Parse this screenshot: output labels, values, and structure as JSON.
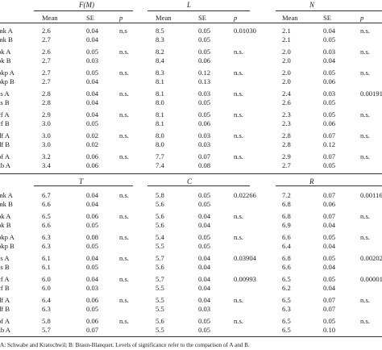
{
  "sections": [
    {
      "titles": [
        "F(M)",
        "L",
        "N"
      ],
      "header_row": true,
      "labels": [
        "Mean",
        "SE",
        "p"
      ],
      "groups": [
        {
          "rows": [
            {
              "label": "mk A",
              "v": [
                [
                  "2.6",
                  "0.04",
                  "n.s"
                ],
                [
                  "8.5",
                  "0.05",
                  "0.01030"
                ],
                [
                  "2.1",
                  "0.04",
                  "n.s."
                ]
              ]
            },
            {
              "label": "mk B",
              "v": [
                [
                  "2.7",
                  "0.04",
                  ""
                ],
                [
                  "8.3",
                  "0.05",
                  ""
                ],
                [
                  "2.1",
                  "0.05",
                  ""
                ]
              ]
            }
          ]
        },
        {
          "rows": [
            {
              "label": "ok A",
              "v": [
                [
                  "2.6",
                  "0.05",
                  "n.s."
                ],
                [
                  "8.2",
                  "0.05",
                  "n.s."
                ],
                [
                  "2.0",
                  "0.03",
                  "n.s."
                ]
              ]
            },
            {
              "label": "ok B",
              "v": [
                [
                  "2.7",
                  "0.03",
                  ""
                ],
                [
                  "8.4",
                  "0.06",
                  ""
                ],
                [
                  "2.0",
                  "0.04",
                  ""
                ]
              ]
            }
          ]
        },
        {
          "rows": [
            {
              "label": "okp A",
              "v": [
                [
                  "2.7",
                  "0.05",
                  "n.s."
                ],
                [
                  "8.3",
                  "0.12",
                  "n.s."
                ],
                [
                  "2.0",
                  "0.05",
                  "n.s."
                ]
              ]
            },
            {
              "label": "okp B",
              "v": [
                [
                  "2.7",
                  "0.04",
                  ""
                ],
                [
                  "8.1",
                  "0.13",
                  ""
                ],
                [
                  "2.0",
                  "0.06",
                  ""
                ]
              ]
            }
          ]
        },
        {
          "rows": [
            {
              "label": "ss A",
              "v": [
                [
                  "2.8",
                  "0.04",
                  "n.s."
                ],
                [
                  "8.1",
                  "0.03",
                  "n.s."
                ],
                [
                  "2.4",
                  "0.03",
                  "0.00191"
                ]
              ]
            },
            {
              "label": "ss B",
              "v": [
                [
                  "2.8",
                  "0.04",
                  ""
                ],
                [
                  "8.0",
                  "0.05",
                  ""
                ],
                [
                  "2.6",
                  "0.05",
                  ""
                ]
              ]
            }
          ]
        },
        {
          "rows": [
            {
              "label": "cf A",
              "v": [
                [
                  "2.9",
                  "0.04",
                  "n.s."
                ],
                [
                  "8.1",
                  "0.05",
                  "n.s."
                ],
                [
                  "2.3",
                  "0.05",
                  "n.s."
                ]
              ]
            },
            {
              "label": "cf B",
              "v": [
                [
                  "3.0",
                  "0.05",
                  ""
                ],
                [
                  "8.1",
                  "0.06",
                  ""
                ],
                [
                  "2.3",
                  "0.06",
                  ""
                ]
              ]
            }
          ]
        },
        {
          "rows": [
            {
              "label": "df A",
              "v": [
                [
                  "3.0",
                  "0.02",
                  "n.s."
                ],
                [
                  "8.0",
                  "0.03",
                  "n.s."
                ],
                [
                  "2.8",
                  "0.07",
                  "n.s."
                ]
              ]
            },
            {
              "label": "df B",
              "v": [
                [
                  "3.0",
                  "0.02",
                  ""
                ],
                [
                  "8.0",
                  "0.03",
                  ""
                ],
                [
                  "2.8",
                  "0.12",
                  ""
                ]
              ]
            }
          ]
        },
        {
          "rows": [
            {
              "label": "pf A",
              "v": [
                [
                  "3.2",
                  "0.06",
                  "n.s."
                ],
                [
                  "7.7",
                  "0.07",
                  "n.s."
                ],
                [
                  "2.9",
                  "0.07",
                  "n.s."
                ]
              ]
            },
            {
              "label": "zb A",
              "v": [
                [
                  "3.4",
                  "0.06",
                  ""
                ],
                [
                  "7.4",
                  "0.08",
                  ""
                ],
                [
                  "2.7",
                  "0.05",
                  ""
                ]
              ]
            }
          ]
        }
      ]
    },
    {
      "titles": [
        "T",
        "C",
        "R"
      ],
      "header_row": false,
      "labels": [],
      "groups": [
        {
          "rows": [
            {
              "label": "mk A",
              "v": [
                [
                  "6.7",
                  "0.04",
                  "n.s."
                ],
                [
                  "5.8",
                  "0.05",
                  "0.02266"
                ],
                [
                  "7.2",
                  "0.07",
                  "0.00116"
                ]
              ]
            },
            {
              "label": "mk B",
              "v": [
                [
                  "6.6",
                  "0.04",
                  ""
                ],
                [
                  "5.6",
                  "0.05",
                  ""
                ],
                [
                  "6.8",
                  "0.06",
                  ""
                ]
              ]
            }
          ]
        },
        {
          "rows": [
            {
              "label": "ok A",
              "v": [
                [
                  "6.5",
                  "0.06",
                  "n.s."
                ],
                [
                  "5.6",
                  "0.04",
                  "n.s."
                ],
                [
                  "6.8",
                  "0.07",
                  "n.s."
                ]
              ]
            },
            {
              "label": "ok B",
              "v": [
                [
                  "6.6",
                  "0.05",
                  ""
                ],
                [
                  "5.6",
                  "0.04",
                  ""
                ],
                [
                  "6.9",
                  "0.04",
                  ""
                ]
              ]
            }
          ]
        },
        {
          "rows": [
            {
              "label": "okp A",
              "v": [
                [
                  "6.3",
                  "0.08",
                  "n.s."
                ],
                [
                  "5.4",
                  "0.05",
                  "n.s."
                ],
                [
                  "6.6",
                  "0.05",
                  "n.s."
                ]
              ]
            },
            {
              "label": "okp B",
              "v": [
                [
                  "6.3",
                  "0.05",
                  ""
                ],
                [
                  "5.5",
                  "0.05",
                  ""
                ],
                [
                  "6.4",
                  "0.04",
                  ""
                ]
              ]
            }
          ]
        },
        {
          "rows": [
            {
              "label": "ss A",
              "v": [
                [
                  "6.1",
                  "0.04",
                  "n.s."
                ],
                [
                  "5.7",
                  "0.04",
                  "0.03904"
                ],
                [
                  "6.8",
                  "0.05",
                  "0.00202"
                ]
              ]
            },
            {
              "label": "ss B",
              "v": [
                [
                  "6.1",
                  "0.05",
                  ""
                ],
                [
                  "5.6",
                  "0.04",
                  ""
                ],
                [
                  "6.6",
                  "0.04",
                  ""
                ]
              ]
            }
          ]
        },
        {
          "rows": [
            {
              "label": "cf A",
              "v": [
                [
                  "6.0",
                  "0.04",
                  "n.s."
                ],
                [
                  "5.7",
                  "0.04",
                  "0.00993"
                ],
                [
                  "6.5",
                  "0.05",
                  "0.00001"
                ]
              ]
            },
            {
              "label": "cf B",
              "v": [
                [
                  "6.0",
                  "0.03",
                  ""
                ],
                [
                  "5.5",
                  "0.04",
                  ""
                ],
                [
                  "6.2",
                  "0.04",
                  ""
                ]
              ]
            }
          ]
        },
        {
          "rows": [
            {
              "label": "df A",
              "v": [
                [
                  "6.4",
                  "0.06",
                  "n.s."
                ],
                [
                  "5.5",
                  "0.04",
                  "n.s."
                ],
                [
                  "6.5",
                  "0.07",
                  "n.s."
                ]
              ]
            },
            {
              "label": "df B",
              "v": [
                [
                  "6.3",
                  "0.05",
                  ""
                ],
                [
                  "5.5",
                  "0.03",
                  ""
                ],
                [
                  "6.3",
                  "0.07",
                  ""
                ]
              ]
            }
          ]
        },
        {
          "rows": [
            {
              "label": "pf A",
              "v": [
                [
                  "5.8",
                  "0.06",
                  "n.s."
                ],
                [
                  "5.6",
                  "0.05",
                  "n.s."
                ],
                [
                  "6.5",
                  "0.05",
                  "n.s."
                ]
              ]
            },
            {
              "label": "zb A",
              "v": [
                [
                  "5.7",
                  "0.07",
                  ""
                ],
                [
                  "5.5",
                  "0.05",
                  ""
                ],
                [
                  "6.5",
                  "0.10",
                  ""
                ]
              ]
            }
          ]
        }
      ]
    }
  ],
  "footnote": "A: Schwabe and Kratochwil; B: Braun-Blanquet. Levels of significance refer to the comparison of A and B."
}
